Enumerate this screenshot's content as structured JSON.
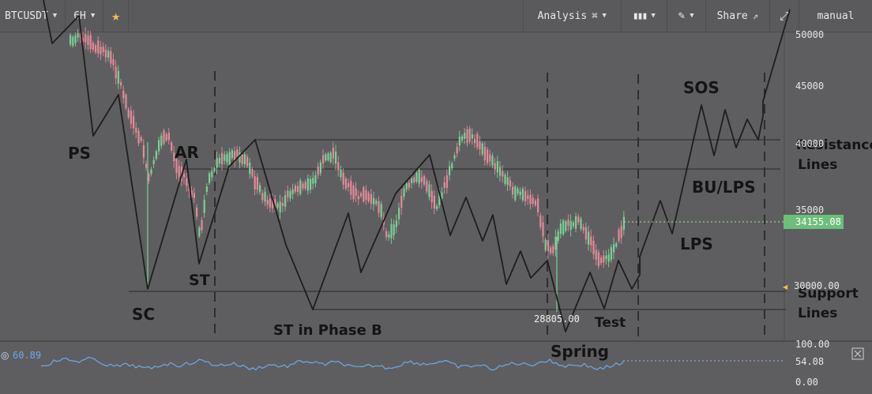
{
  "toolbar": {
    "symbol": "BTCUSDT",
    "interval": "6H",
    "analysis": "Analysis",
    "share": "Share",
    "mode": "manual"
  },
  "annotations": {
    "ps": "PS",
    "ar": "AR",
    "sc": "SC",
    "st": "ST",
    "st_phase_b": "ST in Phase B",
    "spring": "Spring",
    "test": "Test",
    "sos": "SOS",
    "bu_lps": "BU/LPS",
    "lps": "LPS",
    "resistance": "Resistance",
    "resistance_lines": "Lines",
    "support": "Support",
    "support_lines": "Lines"
  },
  "price_axis": {
    "ticks": [
      "50000",
      "45000",
      "40000",
      "35000",
      "30000.00"
    ],
    "current_price": "34155.08",
    "low_label": "28805.00"
  },
  "indicator": {
    "value": "60.89",
    "current": "54.08",
    "ticks": [
      "100.00",
      "0.00"
    ]
  },
  "colors": {
    "up": "#7dcf95",
    "down": "#e58a9a",
    "accent_price": "#6bbf7a",
    "rsi": "#6fa8e8"
  },
  "icons": [
    "chevron-down-icon",
    "star-icon",
    "analysis-icon",
    "candles-icon",
    "pencil-icon",
    "share-link-icon",
    "fullscreen-icon",
    "close-icon"
  ]
}
